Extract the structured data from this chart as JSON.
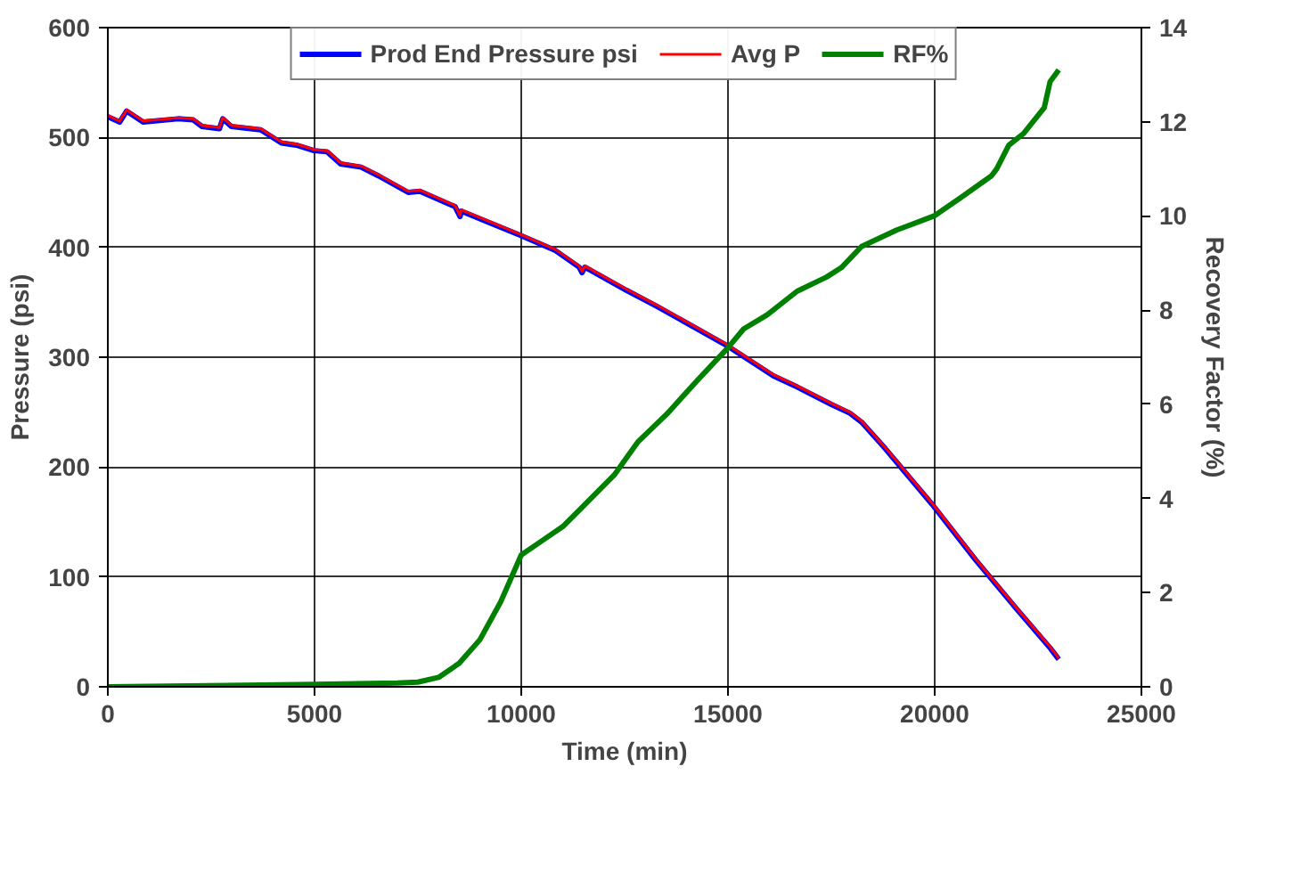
{
  "chart_data": {
    "type": "line",
    "xlabel": "Time (min)",
    "ylabel": "Pressure (psi)",
    "y2label": "Recovery Factor (%)",
    "xlim": [
      0,
      25000
    ],
    "xticks": [
      0,
      5000,
      10000,
      15000,
      20000,
      25000
    ],
    "ylim": [
      0,
      600
    ],
    "yticks": [
      0,
      100,
      200,
      300,
      400,
      500,
      600
    ],
    "y2lim": [
      0,
      14
    ],
    "y2ticks": [
      0,
      2,
      4,
      6,
      8,
      10,
      12,
      14
    ],
    "grid": true,
    "legend": "top",
    "line_style": "solid",
    "marker": "none",
    "series": [
      {
        "name": "Prod End Pressure psi",
        "color": "#0000ff",
        "x": [
          0,
          285,
          456,
          855,
          1700,
          2065,
          2280,
          2700,
          2780,
          2990,
          3700,
          4200,
          4560,
          4990,
          5300,
          5630,
          6125,
          6550,
          7265,
          7550,
          8400,
          8520,
          8550,
          9970,
          10830,
          11400,
          11470,
          11540,
          12540,
          13250,
          15000,
          16100,
          16670,
          17500,
          17950,
          18230,
          18800,
          19940,
          21000,
          22000,
          22800,
          23000
        ],
        "values": [
          519,
          514,
          524,
          514,
          517,
          516,
          510,
          508,
          517,
          510,
          507,
          495,
          493,
          488,
          487,
          476,
          473,
          465,
          450,
          451,
          437,
          428,
          433,
          411,
          397,
          382,
          377,
          382,
          361,
          347,
          310,
          283,
          273,
          257,
          249,
          241,
          217,
          166,
          115,
          70,
          35,
          25
        ]
      },
      {
        "name": "Avg P",
        "color": "#ff0000",
        "x": [
          0,
          285,
          456,
          855,
          1700,
          2065,
          2280,
          2700,
          2780,
          2990,
          3700,
          4200,
          4560,
          4990,
          5300,
          5630,
          6125,
          6550,
          7265,
          7550,
          8400,
          8520,
          8550,
          9970,
          10830,
          11400,
          11470,
          11540,
          12540,
          13250,
          15000,
          16100,
          16670,
          17500,
          17950,
          18230,
          18800,
          19940,
          21000,
          22000,
          22800,
          23000
        ],
        "values": [
          520,
          515,
          525,
          515,
          518,
          517,
          511,
          509,
          518,
          511,
          508,
          496,
          494,
          489,
          488,
          477,
          474,
          466,
          451,
          452,
          438,
          429,
          434,
          412,
          398,
          383,
          378,
          383,
          362,
          348,
          311,
          284,
          274,
          258,
          250,
          242,
          218,
          167,
          116,
          71,
          36,
          26
        ]
      },
      {
        "name": "RF%",
        "color": "#008000",
        "axis": "y2",
        "x": [
          0,
          5000,
          7000,
          7500,
          8000,
          8500,
          9000,
          9500,
          10000,
          10500,
          11000,
          11400,
          12250,
          12820,
          13530,
          14250,
          15000,
          15380,
          15950,
          16670,
          17380,
          17740,
          18230,
          19080,
          19986,
          20650,
          21370,
          21500,
          21790,
          22150,
          22650,
          22790,
          23000
        ],
        "values": [
          0,
          0.05,
          0.08,
          0.1,
          0.2,
          0.5,
          1.0,
          1.8,
          2.8,
          3.1,
          3.4,
          3.75,
          4.5,
          5.2,
          5.8,
          6.5,
          7.2,
          7.6,
          7.9,
          8.4,
          8.7,
          8.9,
          9.35,
          9.7,
          10.0,
          10.4,
          10.85,
          11.0,
          11.5,
          11.75,
          12.3,
          12.85,
          13.1
        ]
      }
    ]
  }
}
